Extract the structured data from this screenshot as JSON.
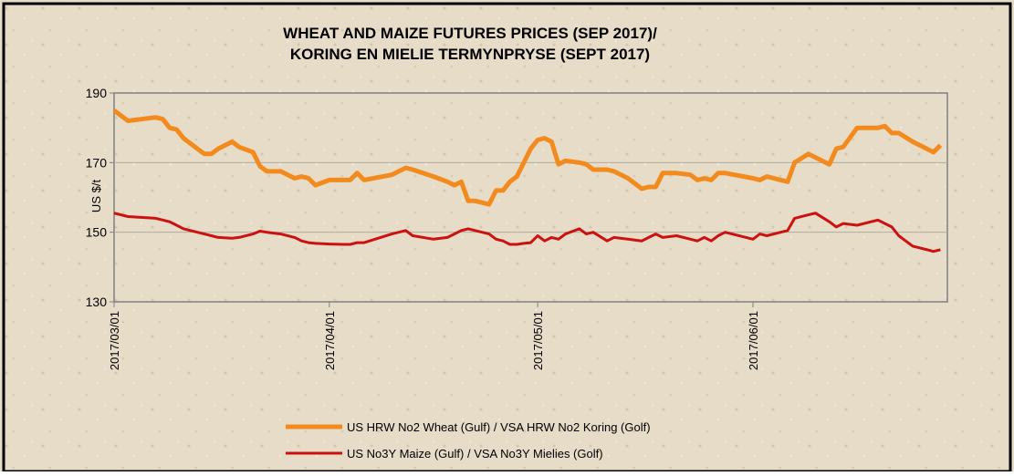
{
  "chart_data": {
    "type": "line",
    "title": [
      "WHEAT AND MAIZE FUTURES PRICES (SEP 2017)/",
      "KORING EN MIELIE TERMYNPRYSE  (SEPT 2017)"
    ],
    "y_label": "US $/t",
    "x": [
      "2017/03/01",
      "2017/03/03",
      "2017/03/07",
      "2017/03/08",
      "2017/03/09",
      "2017/03/10",
      "2017/03/11",
      "2017/03/13",
      "2017/03/14",
      "2017/03/15",
      "2017/03/16",
      "2017/03/18",
      "2017/03/19",
      "2017/03/21",
      "2017/03/22",
      "2017/03/23",
      "2017/03/25",
      "2017/03/27",
      "2017/03/28",
      "2017/03/29",
      "2017/03/30",
      "2017/04/01",
      "2017/04/03",
      "2017/04/04",
      "2017/04/05",
      "2017/04/06",
      "2017/04/10",
      "2017/04/11",
      "2017/04/12",
      "2017/04/13",
      "2017/04/16",
      "2017/04/18",
      "2017/04/19",
      "2017/04/20",
      "2017/04/21",
      "2017/04/22",
      "2017/04/23",
      "2017/04/24",
      "2017/04/25",
      "2017/04/26",
      "2017/04/27",
      "2017/04/28",
      "2017/04/29",
      "2017/04/30",
      "2017/05/01",
      "2017/05/02",
      "2017/05/03",
      "2017/05/04",
      "2017/05/05",
      "2017/05/07",
      "2017/05/08",
      "2017/05/09",
      "2017/05/11",
      "2017/05/12",
      "2017/05/14",
      "2017/05/16",
      "2017/05/17",
      "2017/05/18",
      "2017/05/19",
      "2017/05/21",
      "2017/05/23",
      "2017/05/24",
      "2017/05/25",
      "2017/05/26",
      "2017/05/27",
      "2017/05/28",
      "2017/06/01",
      "2017/06/02",
      "2017/06/03",
      "2017/06/05",
      "2017/06/06",
      "2017/06/07",
      "2017/06/09",
      "2017/06/10",
      "2017/06/12",
      "2017/06/13",
      "2017/06/14",
      "2017/06/16",
      "2017/06/19",
      "2017/06/20",
      "2017/06/21",
      "2017/06/22",
      "2017/06/24",
      "2017/06/27",
      "2017/06/28"
    ],
    "series": [
      {
        "name": "US HRW No2 Wheat (Gulf) / VSA HRW No2 Koring (Golf)",
        "color": "#f28a1e",
        "width": 5,
        "values": [
          185,
          182,
          183,
          182.5,
          180,
          179.5,
          177,
          174,
          172.5,
          172.5,
          174,
          176,
          174.5,
          173,
          169,
          167.5,
          167.5,
          165.5,
          166,
          165.5,
          163.5,
          165,
          165,
          165,
          167,
          165,
          166.5,
          167.5,
          168.5,
          168,
          166,
          164.5,
          163.5,
          164.5,
          159,
          159,
          158.5,
          158,
          162,
          162,
          164.5,
          166,
          170,
          174,
          176.5,
          177,
          176,
          169.5,
          170.5,
          170,
          169.5,
          168,
          168,
          167.5,
          165.5,
          162.5,
          163,
          163,
          167,
          167,
          166.5,
          165,
          165.5,
          165,
          167,
          167,
          165.5,
          165,
          166,
          165,
          164.5,
          170,
          172.5,
          171.5,
          169.5,
          174,
          174.5,
          180,
          180,
          180.5,
          178.5,
          178.5,
          176,
          173,
          175
        ]
      },
      {
        "name": "US No3Y Maize (Gulf) / VSA No3Y Mielies (Golf)",
        "color": "#cc1111",
        "width": 3,
        "values": [
          155.5,
          154.5,
          154,
          153.5,
          153,
          152,
          151,
          150,
          149.5,
          149,
          148.5,
          148.3,
          148.5,
          149.5,
          150.3,
          150,
          149.5,
          148.5,
          147.5,
          147,
          146.8,
          146.6,
          146.5,
          146.5,
          147,
          147,
          149.5,
          150,
          150.5,
          149,
          148,
          148.5,
          149.5,
          150.5,
          151,
          150.5,
          150,
          149.5,
          148,
          147.5,
          146.5,
          146.5,
          146.8,
          147,
          149,
          147.5,
          148.5,
          148,
          149.5,
          151,
          149.5,
          150,
          147.5,
          148.5,
          148,
          147.5,
          148.5,
          149.5,
          148.5,
          149,
          148,
          147.5,
          148.5,
          147.5,
          149,
          150,
          148,
          149.5,
          149,
          150,
          150.5,
          154,
          155,
          155.5,
          153,
          151.5,
          152.5,
          152,
          153.5,
          152.5,
          151.5,
          149,
          146,
          144.5,
          145
        ]
      }
    ],
    "xlim": [
      "2017/03/01",
      "2017/06/29"
    ],
    "xticks": [
      "2017/03/01",
      "2017/04/01",
      "2017/05/01",
      "2017/06/01"
    ],
    "ylim": [
      130,
      190
    ],
    "yticks": [
      130,
      150,
      170,
      190
    ],
    "grid": true,
    "legend": "bottom"
  }
}
